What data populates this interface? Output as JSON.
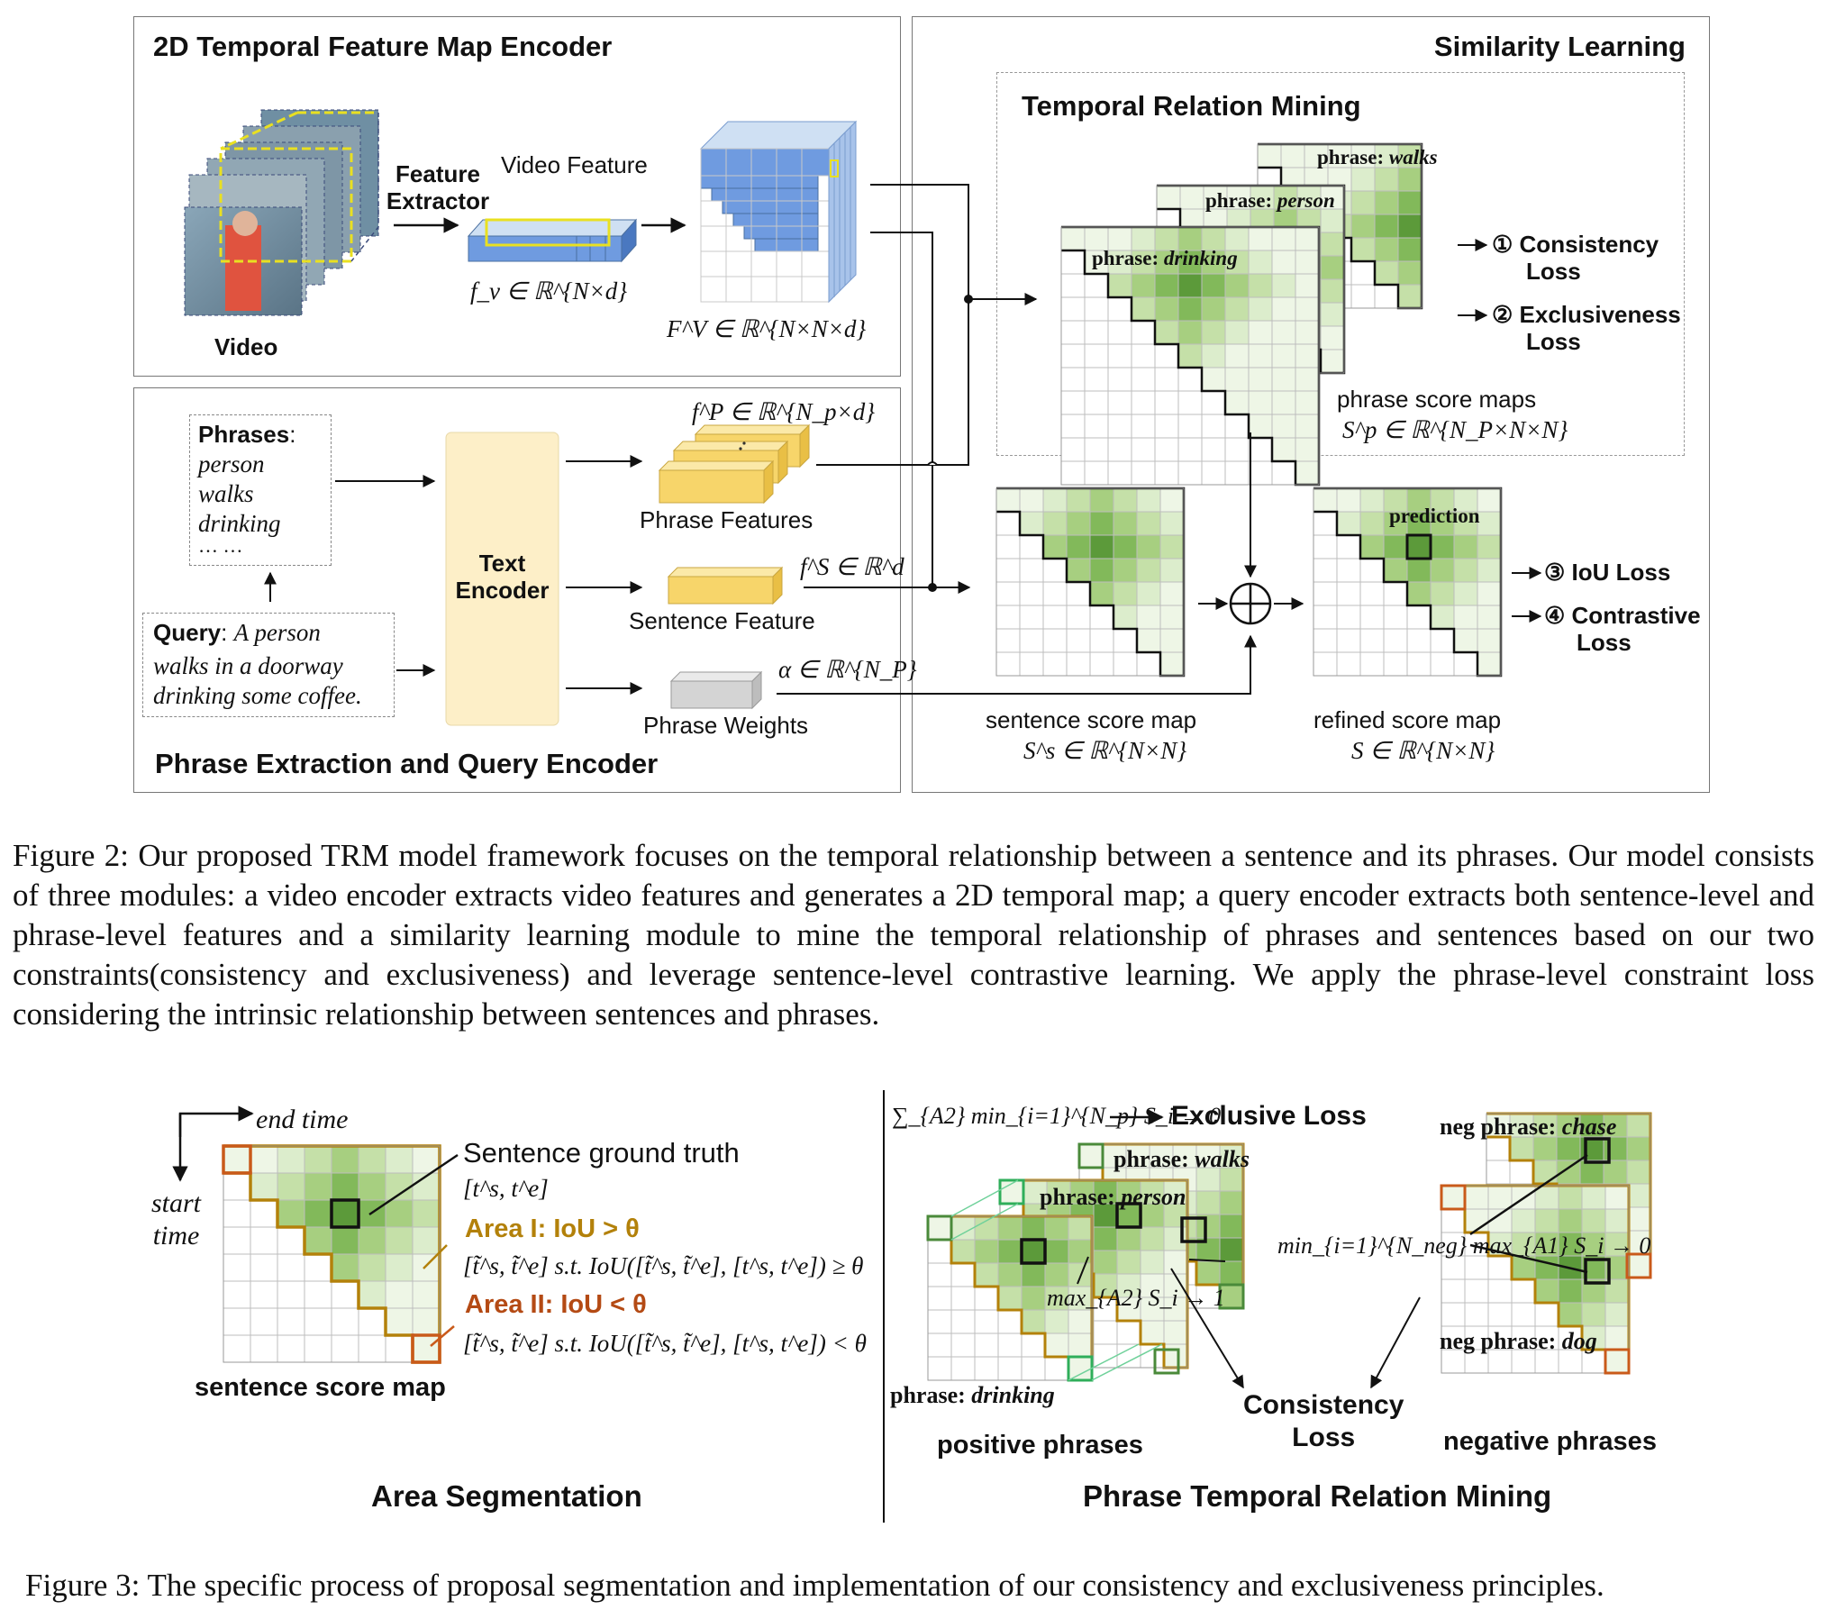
{
  "fig2": {
    "encoder_title": "2D Temporal Feature Map Encoder",
    "similarity_title": "Similarity Learning",
    "trm_title": "Temporal Relation Mining",
    "query_module_title": "Phrase Extraction and Query Encoder",
    "video_label": "Video",
    "feature_extractor": "Feature\nExtractor",
    "video_feature": "Video Feature",
    "fv_math": "f_v ∈ ℝ^{N×d}",
    "FV_math": "F^V ∈ ℝ^{N×N×d}",
    "phrases_heading": "Phrases",
    "phrases": [
      "person",
      "walks",
      "drinking",
      "… …"
    ],
    "query_heading": "Query",
    "query_text": [
      "A person",
      "walks in a doorway",
      "drinking some coffee."
    ],
    "text_encoder": "Text\nEncoder",
    "fP_math": "f^P ∈ ℝ^{N_p×d}",
    "phrase_features": "Phrase Features",
    "fS_math": "f^S ∈ ℝ^d",
    "sentence_feature": "Sentence Feature",
    "alpha_math": "α ∈ ℝ^{N_P}",
    "phrase_weights": "Phrase Weights",
    "map_phrase_prefix": "phrase: ",
    "map_phrases": [
      "walks",
      "person",
      "drinking"
    ],
    "loss1": "① Consistency",
    "loss1b": "Loss",
    "loss2": "② Exclusiveness",
    "loss2b": "Loss",
    "phrase_score_maps": "phrase score maps",
    "Sp_math": "S^p ∈ ℝ^{N_P×N×N}",
    "sentence_score_map": "sentence score map",
    "Ss_math": "S^s ∈ ℝ^{N×N}",
    "refined_score_map": "refined score map",
    "S_math": "S ∈ ℝ^{N×N}",
    "prediction": "prediction",
    "loss3": "③ IoU Loss",
    "loss4": "④ Contrastive",
    "loss4b": "Loss",
    "caption": "Figure 2: Our proposed TRM model framework focuses on the temporal relationship between a sentence and its phrases. Our model consists of three modules: a video encoder extracts video features and generates a 2D temporal map; a query encoder extracts both sentence-level and phrase-level features and a similarity learning module to mine the temporal relationship of phrases and sentences based on our two constraints(consistency and exclusiveness) and leverage sentence-level contrastive learning. We apply the phrase-level constraint loss considering the intrinsic relationship between sentences and phrases."
  },
  "fig3": {
    "end_time": "end time",
    "start_time": "start\ntime",
    "sentence_gt": "Sentence ground truth",
    "gt_math": "[t^s, t^e]",
    "area1": "Area I: IoU > θ",
    "area1_math": "[t̃^s, t̃^e] s.t. IoU([t̃^s, t̃^e], [t^s, t^e]) ≥ θ",
    "area2": "Area II: IoU < θ",
    "area2_math": "[t̃^s, t̃^e] s.t. IoU([t̃^s, t̃^e], [t^s, t^e]) < θ",
    "sentence_score_map": "sentence score map",
    "area_seg_title": "Area Segmentation",
    "excl_math": "∑_{A2} min_{i=1}^{N_p} S_i → 0",
    "exclusive_loss": "Exclusive Loss",
    "pos_phrases": [
      "walks",
      "person",
      "drinking"
    ],
    "phrase_prefix": "phrase: ",
    "cons_math": "max_{A2} S_i → 1",
    "consistency_loss": "Consistency\nLoss",
    "positive_phrases": "positive phrases",
    "neg_prefix": "neg phrase: ",
    "neg_phrases": [
      "chase",
      "dog"
    ],
    "neg_math": "min_{i=1}^{N_neg} max_{A1} S_i → 0",
    "negative_phrases": "negative phrases",
    "ptrm_title": "Phrase Temporal Relation Mining",
    "caption": "Figure 3: The specific process of proposal segmentation and implementation of our consistency and exclusiveness principles."
  }
}
